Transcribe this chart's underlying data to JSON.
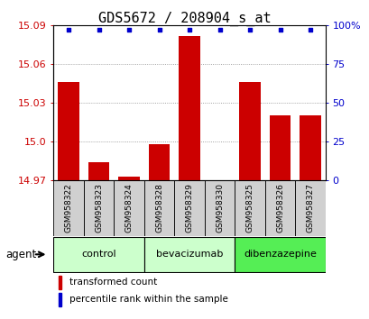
{
  "title": "GDS5672 / 208904_s_at",
  "samples": [
    "GSM958322",
    "GSM958323",
    "GSM958324",
    "GSM958328",
    "GSM958329",
    "GSM958330",
    "GSM958325",
    "GSM958326",
    "GSM958327"
  ],
  "transformed_counts": [
    15.046,
    14.984,
    14.973,
    14.998,
    15.082,
    14.968,
    15.046,
    15.02,
    15.02
  ],
  "percentile_ranks": [
    97,
    97,
    97,
    97,
    97,
    97,
    97,
    97,
    97
  ],
  "ylim_left": [
    14.97,
    15.09
  ],
  "ylim_right": [
    0,
    100
  ],
  "yticks_left": [
    14.97,
    15.0,
    15.03,
    15.06,
    15.09
  ],
  "yticks_right": [
    0,
    25,
    50,
    75,
    100
  ],
  "groups": [
    {
      "label": "control",
      "indices": [
        0,
        1,
        2
      ],
      "color": "#ccffcc"
    },
    {
      "label": "bevacizumab",
      "indices": [
        3,
        4,
        5
      ],
      "color": "#ccffcc"
    },
    {
      "label": "dibenzazepine",
      "indices": [
        6,
        7,
        8
      ],
      "color": "#55ee55"
    }
  ],
  "bar_color": "#cc0000",
  "dot_color": "#0000cc",
  "bar_width": 0.7,
  "background_color": "#ffffff",
  "title_fontsize": 11,
  "tick_fontsize": 8,
  "sample_fontsize": 6.5,
  "agent_label": "agent",
  "legend_items": [
    {
      "label": "transformed count",
      "color": "#cc0000"
    },
    {
      "label": "percentile rank within the sample",
      "color": "#0000cc"
    }
  ]
}
